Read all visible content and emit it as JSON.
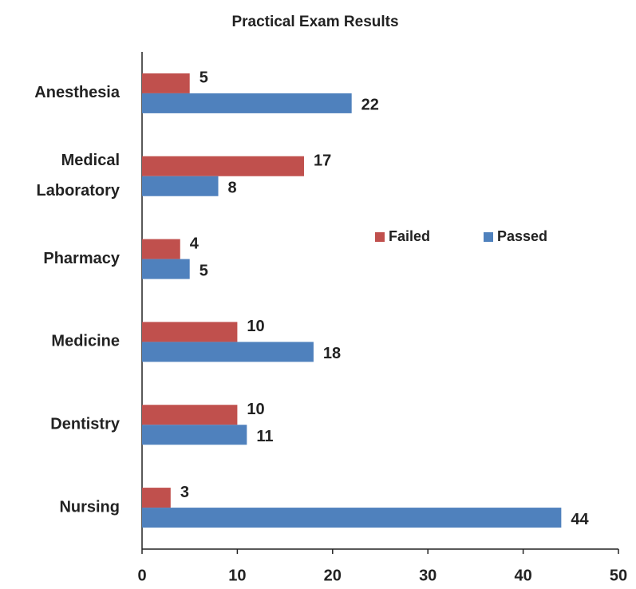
{
  "chart_data": {
    "type": "bar",
    "orientation": "horizontal",
    "title": "Practical Exam Results",
    "categories": [
      "Anesthesia",
      "Medical Laboratory",
      "Pharmacy",
      "Medicine",
      "Dentistry",
      "Nursing"
    ],
    "series": [
      {
        "name": "Failed",
        "color": "#c0504d",
        "values": [
          5,
          17,
          4,
          10,
          10,
          3
        ]
      },
      {
        "name": "Passed",
        "color": "#4f81bd",
        "values": [
          22,
          8,
          5,
          18,
          11,
          44
        ]
      }
    ],
    "xlim": [
      0,
      50
    ],
    "xticks": [
      0,
      10,
      20,
      30,
      40,
      50
    ],
    "grid": false,
    "legend": "center right"
  }
}
